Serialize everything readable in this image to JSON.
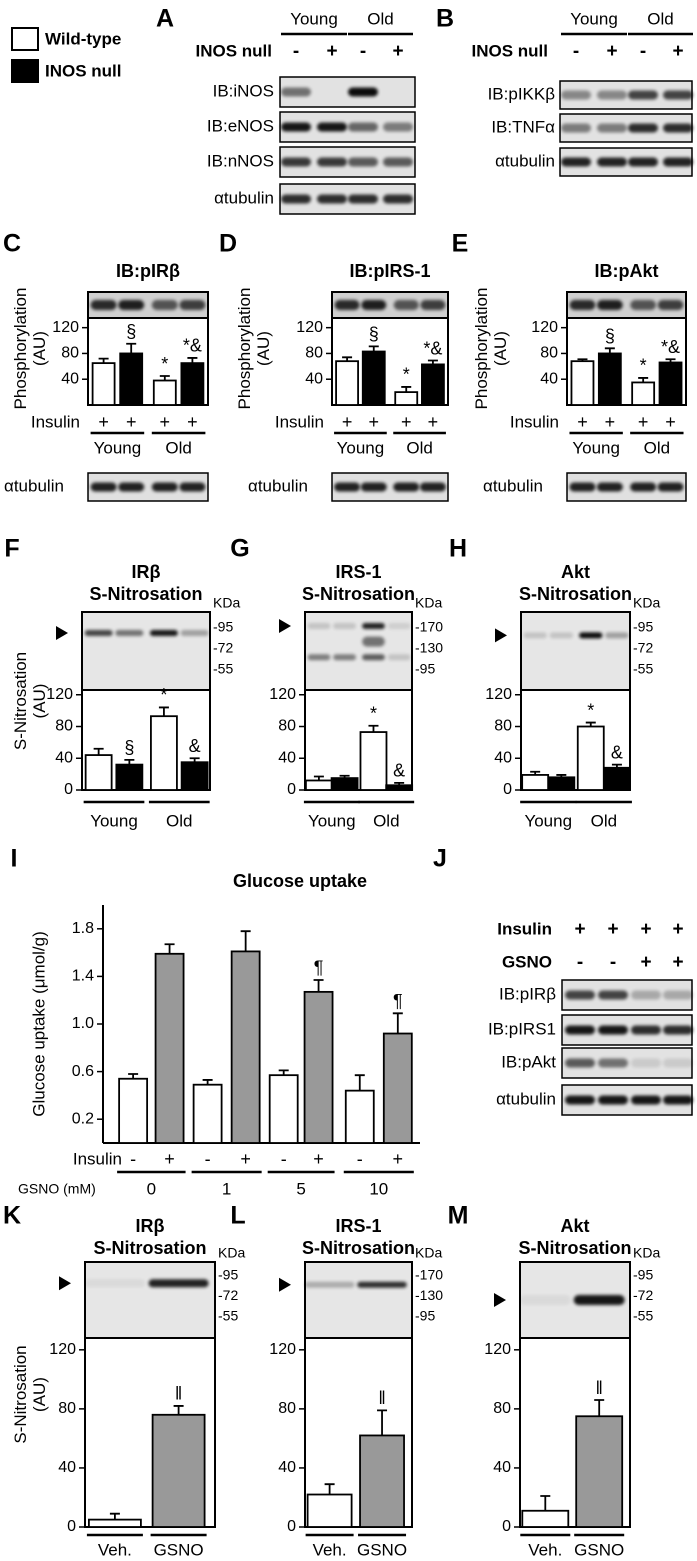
{
  "legend": {
    "items": [
      {
        "label": "Wild-type",
        "color": "#ffffff"
      },
      {
        "label": "INOS null",
        "color": "#000000"
      }
    ]
  },
  "blots": [
    {
      "panel": "A",
      "columns": [
        "Young",
        "Old"
      ],
      "conditions": [
        {
          "label": "INOS null",
          "signs": [
            "-",
            "+",
            "-",
            "+"
          ]
        }
      ],
      "rows": [
        "IB:iNOS",
        "IB:eNOS",
        "IB:nNOS",
        "αtubulin"
      ]
    },
    {
      "panel": "B",
      "columns": [
        "Young",
        "Old"
      ],
      "conditions": [
        {
          "label": "INOS null",
          "signs": [
            "-",
            "+",
            "-",
            "+"
          ]
        }
      ],
      "rows": [
        "IB:pIKKβ",
        "IB:TNFα",
        "αtubulin"
      ]
    },
    {
      "panel": "J",
      "conditions": [
        {
          "label": "Insulin",
          "signs": [
            "+",
            "+",
            "+",
            "+"
          ]
        },
        {
          "label": "GSNO",
          "signs": [
            "-",
            "-",
            "+",
            "+"
          ]
        }
      ],
      "rows": [
        "IB:pIRβ",
        "IB:pIRS1",
        "IB:pAkt",
        "αtubulin"
      ]
    }
  ],
  "chart_data": [
    {
      "panel": "C",
      "type": "bar",
      "title": "IB:pIRβ",
      "ylabel": "Phosphorylation (AU)",
      "ylim": [
        0,
        135
      ],
      "yticks": [
        40,
        80,
        120
      ],
      "xlabel": "Insulin",
      "categories": [
        "+",
        "+",
        "+",
        "+"
      ],
      "groups": [
        "Young",
        "Old"
      ],
      "colors": [
        "#ffffff",
        "#000000",
        "#ffffff",
        "#000000"
      ],
      "values": [
        65,
        80,
        38,
        65
      ],
      "errors": [
        7,
        15,
        7,
        8
      ],
      "annotations": [
        null,
        "§",
        "*",
        "*&"
      ],
      "blot_label": "αtubulin"
    },
    {
      "panel": "D",
      "type": "bar",
      "title": "IB:pIRS-1",
      "ylabel": "Phosphorylation (AU)",
      "ylim": [
        0,
        135
      ],
      "yticks": [
        40,
        80,
        120
      ],
      "xlabel": "Insulin",
      "categories": [
        "+",
        "+",
        "+",
        "+"
      ],
      "groups": [
        "Young",
        "Old"
      ],
      "colors": [
        "#ffffff",
        "#000000",
        "#ffffff",
        "#000000"
      ],
      "values": [
        68,
        83,
        20,
        63
      ],
      "errors": [
        6,
        8,
        8,
        6
      ],
      "annotations": [
        null,
        "§",
        "*",
        "*&"
      ],
      "blot_label": "αtubulin"
    },
    {
      "panel": "E",
      "type": "bar",
      "title": "IB:pAkt",
      "ylabel": "Phosphorylation (AU)",
      "ylim": [
        0,
        135
      ],
      "yticks": [
        40,
        80,
        120
      ],
      "xlabel": "Insulin",
      "categories": [
        "+",
        "+",
        "+",
        "+"
      ],
      "groups": [
        "Young",
        "Old"
      ],
      "colors": [
        "#ffffff",
        "#000000",
        "#ffffff",
        "#000000"
      ],
      "values": [
        68,
        80,
        35,
        66
      ],
      "errors": [
        3,
        8,
        7,
        5
      ],
      "annotations": [
        null,
        "§",
        "*",
        "*&"
      ],
      "blot_label": "αtubulin"
    },
    {
      "panel": "F",
      "type": "bar",
      "title": "IRβ",
      "subtitle": "S-Nitrosation",
      "ylabel": "S-Nitrosation (AU)",
      "ylim": [
        0,
        126
      ],
      "yticks": [
        0,
        40,
        80,
        120
      ],
      "groups": [
        "Young",
        "Old"
      ],
      "colors": [
        "#ffffff",
        "#000000",
        "#ffffff",
        "#000000"
      ],
      "values": [
        44,
        32,
        93,
        35
      ],
      "errors": [
        8,
        6,
        11,
        5
      ],
      "annotations": [
        null,
        "§",
        "*",
        "&"
      ],
      "kda_label": "KDa",
      "markers": [
        "-95",
        "-72",
        "-55"
      ]
    },
    {
      "panel": "G",
      "type": "bar",
      "title": "IRS-1",
      "subtitle": "S-Nitrosation",
      "ylim": [
        0,
        126
      ],
      "yticks": [
        0,
        40,
        80,
        120
      ],
      "groups": [
        "Young",
        "Old"
      ],
      "colors": [
        "#ffffff",
        "#000000",
        "#ffffff",
        "#000000"
      ],
      "values": [
        12,
        15,
        73,
        6
      ],
      "errors": [
        5,
        3,
        8,
        3
      ],
      "annotations": [
        null,
        null,
        "*",
        "&"
      ],
      "kda_label": "KDa",
      "markers": [
        "-170",
        "-130",
        "-95"
      ]
    },
    {
      "panel": "H",
      "type": "bar",
      "title": "Akt",
      "subtitle": "S-Nitrosation",
      "ylim": [
        0,
        126
      ],
      "yticks": [
        0,
        40,
        80,
        120
      ],
      "groups": [
        "Young",
        "Old"
      ],
      "colors": [
        "#ffffff",
        "#000000",
        "#ffffff",
        "#000000"
      ],
      "values": [
        19,
        16,
        80,
        28
      ],
      "errors": [
        4,
        3,
        5,
        4
      ],
      "annotations": [
        null,
        null,
        "*",
        "&"
      ],
      "kda_label": "KDa",
      "markers": [
        "-95",
        "-72",
        "-55"
      ]
    },
    {
      "panel": "I",
      "type": "bar",
      "title": "Glucose uptake",
      "ylabel": "Glucose uptake (μmol/g)",
      "ylim": [
        0,
        2
      ],
      "yticks": [
        0.2,
        0.6,
        {
          "value": 1,
          "label": "1.0"
        },
        1.4,
        1.8
      ],
      "xlabel": "Insulin",
      "categories": [
        "-",
        "+",
        "-",
        "+",
        "-",
        "+",
        "-",
        "+"
      ],
      "group_label": "GSNO (mM)",
      "groups": [
        "0",
        "1",
        "5",
        "10"
      ],
      "colors": [
        "#ffffff",
        "#999999",
        "#ffffff",
        "#999999",
        "#ffffff",
        "#999999",
        "#ffffff",
        "#999999"
      ],
      "values": [
        0.54,
        1.59,
        0.49,
        1.61,
        0.57,
        1.27,
        0.44,
        0.92
      ],
      "errors": [
        0.04,
        0.08,
        0.04,
        0.17,
        0.04,
        0.1,
        0.13,
        0.17
      ],
      "annotations": [
        null,
        null,
        null,
        null,
        null,
        "¶",
        null,
        "¶"
      ]
    },
    {
      "panel": "K",
      "type": "bar",
      "title": "IRβ",
      "subtitle": "S-Nitrosation",
      "ylabel": "S-Nitrosation (AU)",
      "ylim": [
        0,
        128
      ],
      "yticks": [
        0,
        40,
        80,
        120
      ],
      "groups": [
        "Veh.",
        "GSNO"
      ],
      "colors": [
        "#ffffff",
        "#999999"
      ],
      "values": [
        5,
        76
      ],
      "errors": [
        4,
        6
      ],
      "annotations": [
        null,
        "‖"
      ],
      "kda_label": "KDa",
      "markers": [
        "-95",
        "-72",
        "-55"
      ]
    },
    {
      "panel": "L",
      "type": "bar",
      "title": "IRS-1",
      "subtitle": "S-Nitrosation",
      "ylim": [
        0,
        128
      ],
      "yticks": [
        0,
        40,
        80,
        120
      ],
      "groups": [
        "Veh.",
        "GSNO"
      ],
      "colors": [
        "#ffffff",
        "#999999"
      ],
      "values": [
        22,
        62
      ],
      "errors": [
        7,
        17
      ],
      "annotations": [
        null,
        "‖"
      ],
      "kda_label": "KDa",
      "markers": [
        "-170",
        "-130",
        "-95"
      ]
    },
    {
      "panel": "M",
      "type": "bar",
      "title": "Akt",
      "subtitle": "S-Nitrosation",
      "ylim": [
        0,
        128
      ],
      "yticks": [
        0,
        40,
        80,
        120
      ],
      "groups": [
        "Veh.",
        "GSNO"
      ],
      "colors": [
        "#ffffff",
        "#999999"
      ],
      "values": [
        11,
        75
      ],
      "errors": [
        10,
        11
      ],
      "annotations": [
        null,
        "‖"
      ],
      "kda_label": "KDa",
      "markers": [
        "-95",
        "-72",
        "-55"
      ]
    }
  ]
}
